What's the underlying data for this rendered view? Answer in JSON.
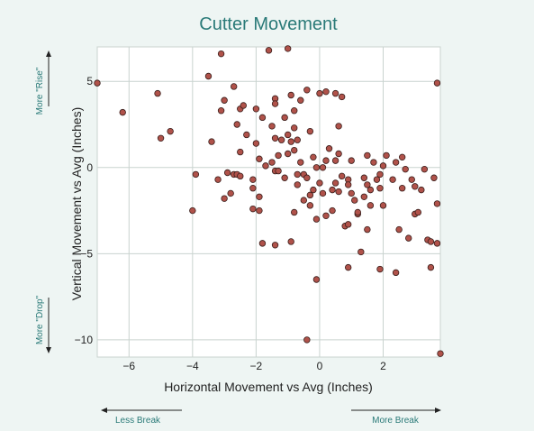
{
  "chart_data": {
    "type": "scatter",
    "title": "Cutter Movement",
    "xlabel": "Horizontal Movement vs Avg (Inches)",
    "ylabel": "Vertical Movement vs Avg (Inches)",
    "xlim": [
      -7,
      3.8
    ],
    "ylim": [
      -11,
      7
    ],
    "xticks": [
      -6,
      -4,
      -2,
      0,
      2
    ],
    "yticks": [
      5,
      0,
      -5,
      -10
    ],
    "grid": true,
    "annotations": {
      "more_rise": "More \"Rise\"",
      "more_drop": "More \"Drop\"",
      "less_break": "Less Break",
      "more_break": "More Break"
    },
    "points": [
      [
        -7.0,
        4.9
      ],
      [
        -6.2,
        3.2
      ],
      [
        -5.1,
        4.3
      ],
      [
        -5.0,
        1.7
      ],
      [
        -4.7,
        2.1
      ],
      [
        -4.0,
        -2.5
      ],
      [
        -3.9,
        -0.4
      ],
      [
        -3.5,
        5.3
      ],
      [
        -3.4,
        1.5
      ],
      [
        -3.2,
        -0.7
      ],
      [
        -3.1,
        6.6
      ],
      [
        -3.1,
        3.3
      ],
      [
        -3.0,
        3.9
      ],
      [
        -3.0,
        -1.8
      ],
      [
        -2.9,
        -0.3
      ],
      [
        -2.8,
        -1.5
      ],
      [
        -2.7,
        4.7
      ],
      [
        -2.7,
        -0.4
      ],
      [
        -2.6,
        2.5
      ],
      [
        -2.6,
        -0.4
      ],
      [
        -2.5,
        3.4
      ],
      [
        -2.5,
        0.9
      ],
      [
        -2.5,
        -0.5
      ],
      [
        -2.4,
        3.6
      ],
      [
        -2.3,
        1.9
      ],
      [
        -2.1,
        -0.7
      ],
      [
        -2.1,
        -1.2
      ],
      [
        -2.1,
        -2.4
      ],
      [
        -2.0,
        3.4
      ],
      [
        -2.0,
        1.4
      ],
      [
        -1.9,
        0.5
      ],
      [
        -1.9,
        -1.7
      ],
      [
        -1.9,
        -2.5
      ],
      [
        -1.8,
        2.9
      ],
      [
        -1.8,
        -4.4
      ],
      [
        -1.7,
        0.1
      ],
      [
        -1.6,
        6.8
      ],
      [
        -1.5,
        2.4
      ],
      [
        -1.5,
        0.3
      ],
      [
        -1.4,
        4.0
      ],
      [
        -1.4,
        3.7
      ],
      [
        -1.4,
        1.7
      ],
      [
        -1.4,
        -0.2
      ],
      [
        -1.4,
        -4.5
      ],
      [
        -1.3,
        0.7
      ],
      [
        -1.3,
        -0.2
      ],
      [
        -1.2,
        1.6
      ],
      [
        -1.1,
        2.9
      ],
      [
        -1.1,
        -0.6
      ],
      [
        -1.0,
        6.9
      ],
      [
        -1.0,
        1.9
      ],
      [
        -1.0,
        0.8
      ],
      [
        -0.9,
        4.2
      ],
      [
        -0.9,
        1.5
      ],
      [
        -0.9,
        -4.3
      ],
      [
        -0.8,
        3.3
      ],
      [
        -0.8,
        2.3
      ],
      [
        -0.8,
        1.0
      ],
      [
        -0.8,
        -2.6
      ],
      [
        -0.7,
        1.6
      ],
      [
        -0.7,
        -0.4
      ],
      [
        -0.7,
        -1.0
      ],
      [
        -0.6,
        3.9
      ],
      [
        -0.6,
        0.3
      ],
      [
        -0.5,
        -0.4
      ],
      [
        -0.5,
        -1.9
      ],
      [
        -0.4,
        4.5
      ],
      [
        -0.4,
        -10.0
      ],
      [
        -0.4,
        -0.6
      ],
      [
        -0.3,
        2.1
      ],
      [
        -0.3,
        -1.6
      ],
      [
        -0.3,
        -2.2
      ],
      [
        -0.2,
        0.6
      ],
      [
        -0.2,
        -1.3
      ],
      [
        -0.1,
        -6.5
      ],
      [
        -0.1,
        0.0
      ],
      [
        -0.1,
        -3.0
      ],
      [
        0.0,
        4.3
      ],
      [
        0.0,
        -0.9
      ],
      [
        0.1,
        -1.5
      ],
      [
        0.1,
        0.0
      ],
      [
        0.2,
        4.4
      ],
      [
        0.2,
        0.4
      ],
      [
        0.2,
        -2.8
      ],
      [
        0.3,
        1.1
      ],
      [
        0.4,
        -1.3
      ],
      [
        0.4,
        -2.5
      ],
      [
        0.5,
        4.3
      ],
      [
        0.5,
        0.4
      ],
      [
        0.5,
        -0.9
      ],
      [
        0.6,
        2.4
      ],
      [
        0.6,
        0.8
      ],
      [
        0.6,
        -1.4
      ],
      [
        0.7,
        4.1
      ],
      [
        0.7,
        -0.5
      ],
      [
        0.8,
        -3.4
      ],
      [
        0.9,
        -5.8
      ],
      [
        0.9,
        -0.7
      ],
      [
        0.9,
        -1.0
      ],
      [
        0.9,
        -3.3
      ],
      [
        1.0,
        0.4
      ],
      [
        1.0,
        -1.5
      ],
      [
        1.1,
        -1.9
      ],
      [
        1.2,
        -2.7
      ],
      [
        1.2,
        -2.6
      ],
      [
        1.3,
        -4.9
      ],
      [
        1.4,
        -1.7
      ],
      [
        1.4,
        -0.6
      ],
      [
        1.5,
        0.7
      ],
      [
        1.5,
        -1.0
      ],
      [
        1.5,
        -3.6
      ],
      [
        1.6,
        -1.3
      ],
      [
        1.6,
        -2.2
      ],
      [
        1.7,
        0.3
      ],
      [
        1.8,
        -0.7
      ],
      [
        1.9,
        -5.9
      ],
      [
        1.9,
        -1.2
      ],
      [
        1.9,
        -0.4
      ],
      [
        2.0,
        0.1
      ],
      [
        2.0,
        -2.2
      ],
      [
        2.1,
        0.7
      ],
      [
        2.3,
        -0.7
      ],
      [
        2.4,
        -6.1
      ],
      [
        2.4,
        0.3
      ],
      [
        2.5,
        -3.6
      ],
      [
        2.6,
        -1.2
      ],
      [
        2.6,
        0.6
      ],
      [
        2.7,
        -0.1
      ],
      [
        2.8,
        -4.1
      ],
      [
        2.9,
        -0.7
      ],
      [
        3.0,
        -2.7
      ],
      [
        3.0,
        -1.1
      ],
      [
        3.1,
        -2.6
      ],
      [
        3.2,
        -1.3
      ],
      [
        3.3,
        -0.1
      ],
      [
        3.4,
        -4.2
      ],
      [
        3.5,
        -4.3
      ],
      [
        3.5,
        -5.8
      ],
      [
        3.6,
        -0.6
      ],
      [
        3.7,
        -2.1
      ],
      [
        3.7,
        -4.4
      ],
      [
        3.7,
        4.9
      ],
      [
        3.8,
        -10.8
      ]
    ]
  }
}
